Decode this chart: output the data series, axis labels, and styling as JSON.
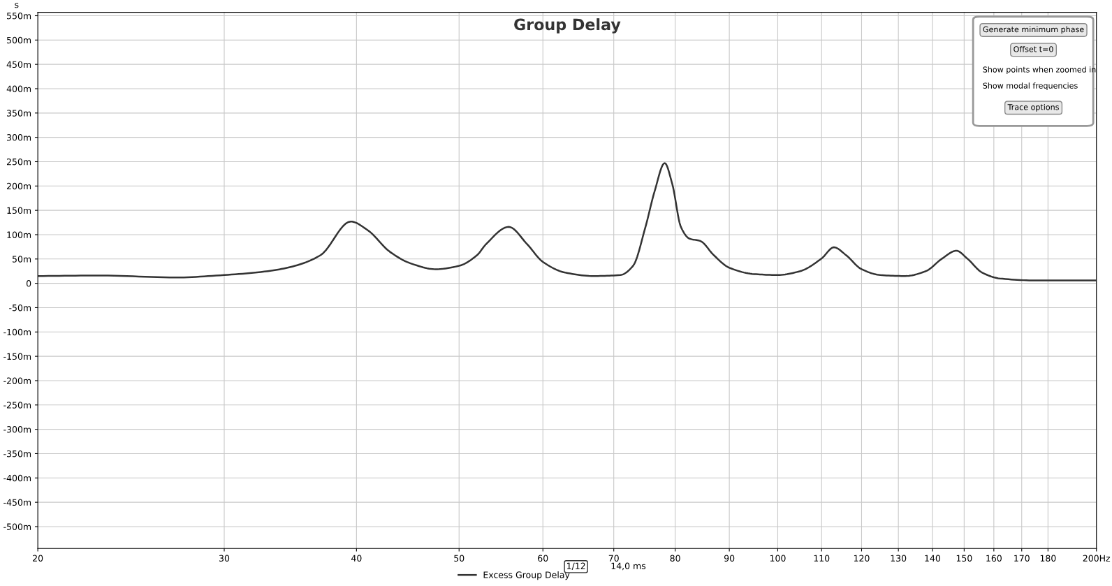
{
  "chart_data": {
    "type": "line",
    "title": "Group Delay",
    "ylabel": "s",
    "x": [
      20,
      23,
      27,
      30,
      33,
      35,
      37,
      39.5,
      41,
      43,
      45,
      47.5,
      50,
      52,
      53,
      55.7,
      58,
      60,
      63,
      67,
      71,
      73,
      75,
      76.5,
      78.2,
      79.5,
      81,
      82.5,
      84.5,
      87,
      90,
      95,
      100,
      105,
      110,
      113,
      116,
      120,
      125,
      132,
      138,
      143,
      147.5,
      151,
      156,
      162,
      175,
      200
    ],
    "series": [
      {
        "name": "Excess Group Delay",
        "color": "#333333",
        "values": [
          15,
          16,
          12,
          17,
          25,
          36,
          58,
          127,
          109,
          65,
          41,
          29,
          36,
          58,
          80,
          116,
          80,
          44,
          22,
          15,
          17,
          36,
          116,
          189,
          247,
          204,
          116,
          92,
          87,
          58,
          32,
          19,
          17,
          25,
          51,
          74,
          58,
          29,
          17,
          15,
          25,
          51,
          67,
          51,
          22,
          10,
          6,
          6
        ]
      }
    ],
    "log": "x",
    "xlim": [
      20,
      200
    ],
    "xticks": [
      20,
      30,
      40,
      50,
      60,
      70,
      80,
      90,
      100,
      110,
      120,
      130,
      140,
      150,
      160,
      170,
      180,
      {
        "value": 200,
        "label": "200Hz"
      }
    ],
    "ylim": [
      -545,
      557
    ],
    "yticks": [
      {
        "value": -500,
        "label": "-500m"
      },
      {
        "value": -450,
        "label": "-450m"
      },
      {
        "value": -400,
        "label": "-400m"
      },
      {
        "value": -350,
        "label": "-350m"
      },
      {
        "value": -300,
        "label": "-300m"
      },
      {
        "value": -250,
        "label": "-250m"
      },
      {
        "value": -200,
        "label": "-200m"
      },
      {
        "value": -150,
        "label": "-150m"
      },
      {
        "value": -100,
        "label": "-100m"
      },
      {
        "value": -50,
        "label": "-50m"
      },
      0,
      {
        "value": 50,
        "label": "50m"
      },
      {
        "value": 100,
        "label": "100m"
      },
      {
        "value": 150,
        "label": "150m"
      },
      {
        "value": 200,
        "label": "200m"
      },
      {
        "value": 250,
        "label": "250m"
      },
      {
        "value": 300,
        "label": "300m"
      },
      {
        "value": 350,
        "label": "350m"
      },
      {
        "value": 400,
        "label": "400m"
      },
      {
        "value": 450,
        "label": "450m"
      },
      {
        "value": 500,
        "label": "500m"
      },
      {
        "value": 550,
        "label": "550m"
      }
    ],
    "grid": true,
    "legend": "bottom",
    "marker": "none",
    "line_style": "solid",
    "annotations": [
      "Generate minimum phase",
      "Offset t=0",
      "Show points when zoomed in",
      "Show modal frequencies",
      "Trace options",
      "1/12",
      "14,0 ms"
    ]
  }
}
